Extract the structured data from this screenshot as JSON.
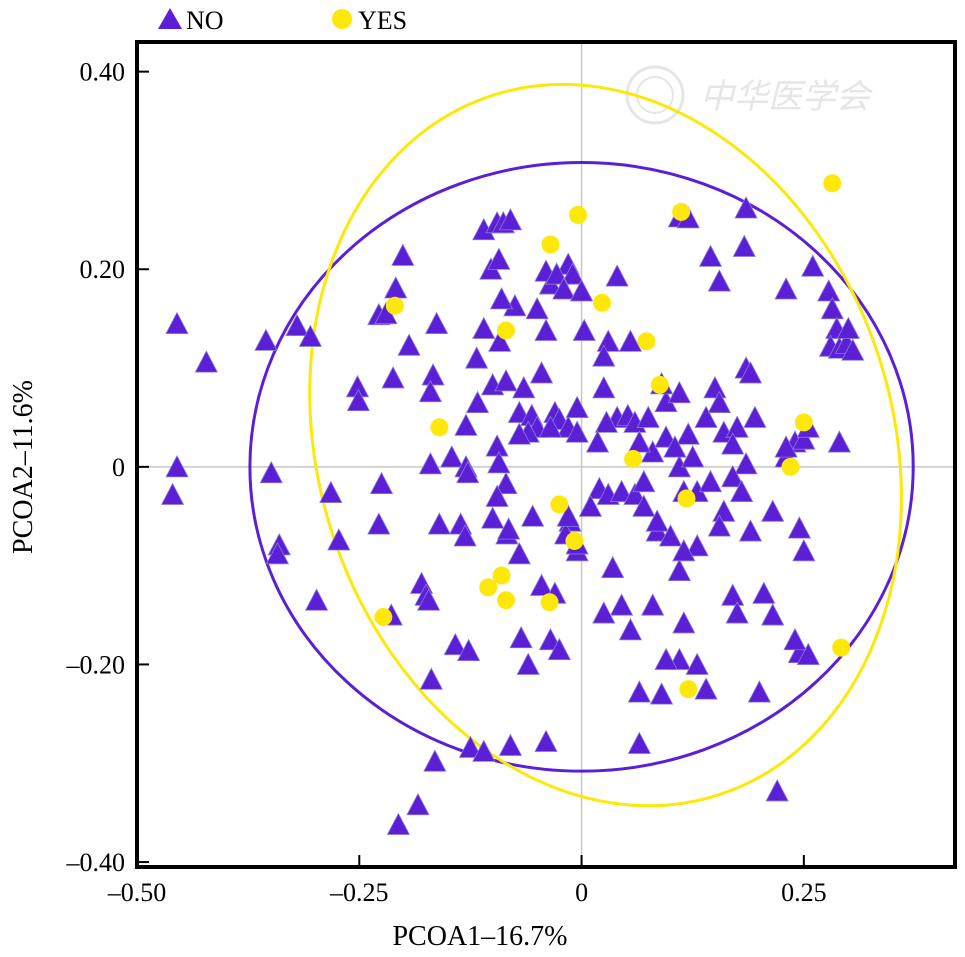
{
  "chart_data": {
    "type": "scatter",
    "xlabel": "PCOA1–16.7%",
    "ylabel": "PCOA2–11.6%",
    "xlim": [
      -0.5,
      0.42
    ],
    "ylim": [
      -0.405,
      0.43
    ],
    "xticks": [
      {
        "value": -0.5,
        "label": "–0.50"
      },
      {
        "value": -0.25,
        "label": "–0.25"
      },
      {
        "value": 0,
        "label": "0"
      },
      {
        "value": 0.25,
        "label": "0.25"
      }
    ],
    "yticks": [
      {
        "value": 0.4,
        "label": "0.40"
      },
      {
        "value": 0.2,
        "label": "0.20"
      },
      {
        "value": 0,
        "label": "0"
      },
      {
        "value": -0.2,
        "label": "–0.20"
      },
      {
        "value": -0.4,
        "label": "–0.40"
      }
    ],
    "reference_lines": {
      "x": 0,
      "y": 0
    },
    "legend_position": "top-left-outside",
    "watermark": "中华医学会",
    "series": [
      {
        "name": "NO",
        "marker": "triangle",
        "color": "#5b1fd6",
        "ellipse": {
          "cx": 0.0,
          "cy": 0.0,
          "rx": 0.373,
          "ry": 0.308,
          "angle": 0
        },
        "points": [
          [
            -0.455,
            0.145
          ],
          [
            -0.422,
            0.106
          ],
          [
            -0.455,
            0.0
          ],
          [
            -0.46,
            -0.028
          ],
          [
            -0.355,
            0.128
          ],
          [
            -0.32,
            0.143
          ],
          [
            -0.305,
            0.132
          ],
          [
            -0.349,
            -0.006
          ],
          [
            -0.34,
            -0.079
          ],
          [
            -0.342,
            -0.088
          ],
          [
            -0.298,
            -0.135
          ],
          [
            -0.282,
            -0.026
          ],
          [
            -0.273,
            -0.074
          ],
          [
            -0.252,
            0.081
          ],
          [
            -0.251,
            0.067
          ],
          [
            -0.228,
            0.154
          ],
          [
            -0.22,
            0.155
          ],
          [
            -0.209,
            0.181
          ],
          [
            -0.201,
            0.214
          ],
          [
            -0.212,
            0.09
          ],
          [
            -0.225,
            -0.017
          ],
          [
            -0.228,
            -0.058
          ],
          [
            -0.214,
            -0.15
          ],
          [
            -0.18,
            -0.118
          ],
          [
            -0.175,
            -0.13
          ],
          [
            -0.172,
            -0.135
          ],
          [
            -0.167,
            0.093
          ],
          [
            -0.17,
            0.076
          ],
          [
            -0.163,
            0.145
          ],
          [
            -0.194,
            0.123
          ],
          [
            -0.17,
            0.003
          ],
          [
            -0.146,
            0.01
          ],
          [
            -0.13,
            0.0
          ],
          [
            -0.128,
            -0.006
          ],
          [
            -0.13,
            0.042
          ],
          [
            -0.16,
            -0.058
          ],
          [
            -0.136,
            -0.058
          ],
          [
            -0.131,
            -0.07
          ],
          [
            -0.169,
            -0.215
          ],
          [
            -0.165,
            -0.298
          ],
          [
            -0.142,
            -0.18
          ],
          [
            -0.127,
            -0.186
          ],
          [
            -0.125,
            -0.284
          ],
          [
            -0.11,
            -0.288
          ],
          [
            -0.08,
            -0.282
          ],
          [
            -0.184,
            -0.342
          ],
          [
            -0.206,
            -0.362
          ],
          [
            -0.11,
            0.14
          ],
          [
            -0.092,
            0.127
          ],
          [
            -0.117,
            0.065
          ],
          [
            -0.1,
            0.083
          ],
          [
            -0.085,
            0.087
          ],
          [
            -0.095,
            0.021
          ],
          [
            -0.085,
            -0.017
          ],
          [
            -0.093,
            0.004
          ],
          [
            -0.095,
            -0.03
          ],
          [
            -0.1,
            -0.052
          ],
          [
            -0.084,
            -0.068
          ],
          [
            -0.07,
            -0.088
          ],
          [
            -0.082,
            -0.063
          ],
          [
            -0.11,
            0.24
          ],
          [
            -0.095,
            0.247
          ],
          [
            -0.088,
            0.247
          ],
          [
            -0.08,
            0.25
          ],
          [
            -0.102,
            0.2
          ],
          [
            -0.093,
            0.21
          ],
          [
            -0.075,
            0.163
          ],
          [
            -0.09,
            0.17
          ],
          [
            -0.118,
            0.11
          ],
          [
            -0.065,
            0.08
          ],
          [
            -0.07,
            0.055
          ],
          [
            -0.056,
            0.052
          ],
          [
            -0.05,
            0.04
          ],
          [
            -0.06,
            0.035
          ],
          [
            -0.07,
            0.033
          ],
          [
            -0.055,
            -0.05
          ],
          [
            -0.045,
            0.095
          ],
          [
            -0.04,
            0.138
          ],
          [
            -0.05,
            0.16
          ],
          [
            -0.035,
            0.185
          ],
          [
            -0.04,
            0.198
          ],
          [
            -0.015,
            0.205
          ],
          [
            -0.01,
            0.195
          ],
          [
            -0.028,
            0.195
          ],
          [
            -0.02,
            0.18
          ],
          [
            0.0,
            0.178
          ],
          [
            0.04,
            0.193
          ],
          [
            -0.03,
            0.055
          ],
          [
            -0.025,
            0.048
          ],
          [
            -0.015,
            0.04
          ],
          [
            -0.035,
            0.04
          ],
          [
            0.04,
            0.05
          ],
          [
            0.052,
            0.052
          ],
          [
            0.06,
            0.045
          ],
          [
            -0.005,
            0.06
          ],
          [
            0.025,
            0.08
          ],
          [
            0.03,
            0.127
          ],
          [
            0.025,
            0.112
          ],
          [
            0.055,
            0.127
          ],
          [
            0.003,
            0.138
          ],
          [
            -0.005,
            0.035
          ],
          [
            0.028,
            0.045
          ],
          [
            0.018,
            0.025
          ],
          [
            0.02,
            -0.022
          ],
          [
            0.03,
            -0.028
          ],
          [
            0.045,
            -0.025
          ],
          [
            0.06,
            -0.028
          ],
          [
            0.07,
            -0.04
          ],
          [
            0.085,
            -0.065
          ],
          [
            0.01,
            -0.04
          ],
          [
            -0.013,
            -0.055
          ],
          [
            -0.018,
            -0.068
          ],
          [
            -0.005,
            -0.085
          ],
          [
            -0.045,
            -0.12
          ],
          [
            -0.03,
            -0.128
          ],
          [
            -0.035,
            -0.175
          ],
          [
            -0.025,
            -0.185
          ],
          [
            -0.068,
            -0.173
          ],
          [
            -0.06,
            -0.2
          ],
          [
            -0.04,
            -0.278
          ],
          [
            0.025,
            -0.148
          ],
          [
            0.045,
            -0.14
          ],
          [
            0.035,
            -0.102
          ],
          [
            0.055,
            -0.165
          ],
          [
            0.065,
            -0.228
          ],
          [
            0.08,
            -0.14
          ],
          [
            0.09,
            -0.23
          ],
          [
            0.065,
            -0.28
          ],
          [
            0.08,
            0.015
          ],
          [
            0.075,
            0.05
          ],
          [
            0.095,
            0.066
          ],
          [
            0.09,
            0.084
          ],
          [
            0.11,
            0.075
          ],
          [
            0.11,
            0.0
          ],
          [
            0.115,
            -0.025
          ],
          [
            0.13,
            -0.025
          ],
          [
            0.12,
            0.033
          ],
          [
            0.125,
            0.01
          ],
          [
            0.14,
            0.05
          ],
          [
            0.15,
            0.08
          ],
          [
            0.155,
            0.065
          ],
          [
            0.16,
            0.035
          ],
          [
            0.145,
            -0.015
          ],
          [
            0.16,
            -0.045
          ],
          [
            0.155,
            -0.06
          ],
          [
            0.13,
            -0.08
          ],
          [
            0.11,
            -0.105
          ],
          [
            0.115,
            -0.158
          ],
          [
            0.11,
            -0.195
          ],
          [
            0.13,
            -0.2
          ],
          [
            0.14,
            -0.225
          ],
          [
            0.095,
            -0.195
          ],
          [
            0.085,
            -0.055
          ],
          [
            0.1,
            -0.07
          ],
          [
            0.115,
            -0.085
          ],
          [
            0.07,
            -0.015
          ],
          [
            0.065,
            0.025
          ],
          [
            0.095,
            0.03
          ],
          [
            0.105,
            0.02
          ],
          [
            0.145,
            0.213
          ],
          [
            0.155,
            0.188
          ],
          [
            0.183,
            0.223
          ],
          [
            0.185,
            0.262
          ],
          [
            0.11,
            0.253
          ],
          [
            0.12,
            0.252
          ],
          [
            0.185,
            0.1
          ],
          [
            0.19,
            0.095
          ],
          [
            0.195,
            0.05
          ],
          [
            0.175,
            0.04
          ],
          [
            0.17,
            0.023
          ],
          [
            0.185,
            0.003
          ],
          [
            0.17,
            -0.01
          ],
          [
            0.18,
            -0.025
          ],
          [
            0.19,
            -0.065
          ],
          [
            0.17,
            -0.13
          ],
          [
            0.175,
            -0.148
          ],
          [
            0.205,
            -0.128
          ],
          [
            0.215,
            -0.15
          ],
          [
            0.245,
            -0.062
          ],
          [
            0.25,
            -0.085
          ],
          [
            0.245,
            -0.188
          ],
          [
            0.255,
            -0.19
          ],
          [
            0.24,
            -0.175
          ],
          [
            0.2,
            -0.228
          ],
          [
            0.22,
            -0.328
          ],
          [
            0.215,
            -0.045
          ],
          [
            0.23,
            0.01
          ],
          [
            0.24,
            0.025
          ],
          [
            0.25,
            0.028
          ],
          [
            0.255,
            0.04
          ],
          [
            0.23,
            0.02
          ],
          [
            0.29,
            0.025
          ],
          [
            0.23,
            0.18
          ],
          [
            0.26,
            0.203
          ],
          [
            0.278,
            0.178
          ],
          [
            0.282,
            0.16
          ],
          [
            0.287,
            0.14
          ],
          [
            0.28,
            0.122
          ],
          [
            0.29,
            0.12
          ],
          [
            0.298,
            0.125
          ],
          [
            0.3,
            0.14
          ],
          [
            0.305,
            0.118
          ],
          [
            -0.005,
            -0.078
          ],
          [
            -0.015,
            -0.05
          ]
        ]
      },
      {
        "name": "YES",
        "marker": "circle",
        "color": "#fde80a",
        "ellipse": {
          "cx": 0.027,
          "cy": 0.022,
          "rx": 0.323,
          "ry": 0.372,
          "angle": -18
        },
        "points": [
          [
            -0.21,
            0.163
          ],
          [
            -0.16,
            0.04
          ],
          [
            -0.085,
            0.138
          ],
          [
            -0.035,
            0.225
          ],
          [
            -0.004,
            0.255
          ],
          [
            0.023,
            0.166
          ],
          [
            0.073,
            0.127
          ],
          [
            0.112,
            0.258
          ],
          [
            0.282,
            0.287
          ],
          [
            0.088,
            0.083
          ],
          [
            0.058,
            0.008
          ],
          [
            0.118,
            -0.032
          ],
          [
            0.235,
            0.0
          ],
          [
            0.25,
            0.045
          ],
          [
            -0.025,
            -0.038
          ],
          [
            -0.008,
            -0.075
          ],
          [
            -0.09,
            -0.11
          ],
          [
            -0.105,
            -0.122
          ],
          [
            -0.085,
            -0.135
          ],
          [
            -0.036,
            -0.137
          ],
          [
            -0.223,
            -0.152
          ],
          [
            0.12,
            -0.225
          ],
          [
            0.292,
            -0.183
          ]
        ]
      }
    ]
  }
}
